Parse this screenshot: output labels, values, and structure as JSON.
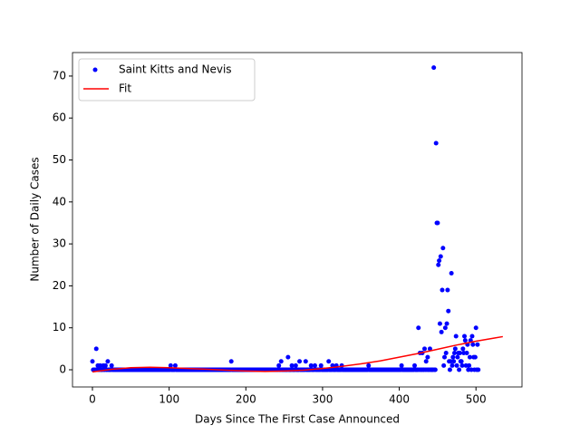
{
  "chart_data": {
    "type": "scatter",
    "xlabel": "Days Since The First Case Announced",
    "ylabel": "Number of Daily Cases",
    "xlim": [
      -26,
      560
    ],
    "ylim": [
      -4.1,
      75.6
    ],
    "xticks": [
      0,
      100,
      200,
      300,
      400,
      500
    ],
    "yticks": [
      0,
      10,
      20,
      30,
      40,
      50,
      60,
      70
    ],
    "legend": "upper left",
    "series": [
      {
        "name": "Saint Kitts and Nevis",
        "kind": "points",
        "color": "#0000ff",
        "x": [
          0,
          1,
          2,
          3,
          4,
          5,
          6,
          7,
          8,
          9,
          10,
          11,
          12,
          13,
          14,
          15,
          16,
          17,
          18,
          19,
          20,
          21,
          22,
          23,
          24,
          25,
          26,
          27,
          28,
          29,
          30,
          31,
          32,
          33,
          34,
          35,
          36,
          37,
          38,
          39,
          40,
          41,
          42,
          43,
          44,
          45,
          46,
          47,
          48,
          49,
          50,
          51,
          52,
          53,
          54,
          55,
          56,
          57,
          58,
          59,
          60,
          61,
          62,
          63,
          64,
          65,
          66,
          67,
          68,
          69,
          70,
          71,
          72,
          73,
          74,
          75,
          76,
          77,
          78,
          79,
          80,
          81,
          82,
          83,
          84,
          85,
          86,
          87,
          88,
          89,
          90,
          91,
          92,
          93,
          94,
          95,
          96,
          97,
          98,
          99,
          100,
          101,
          102,
          103,
          104,
          105,
          106,
          107,
          108,
          109,
          110,
          111,
          112,
          113,
          114,
          115,
          116,
          117,
          118,
          119,
          120,
          121,
          122,
          123,
          124,
          125,
          126,
          127,
          128,
          129,
          130,
          131,
          132,
          133,
          134,
          135,
          136,
          137,
          138,
          139,
          140,
          141,
          142,
          143,
          144,
          145,
          146,
          147,
          148,
          149,
          150,
          151,
          152,
          153,
          154,
          155,
          156,
          157,
          158,
          159,
          160,
          161,
          162,
          163,
          164,
          165,
          166,
          167,
          168,
          169,
          170,
          171,
          172,
          173,
          174,
          175,
          176,
          177,
          178,
          179,
          180,
          181,
          182,
          183,
          184,
          185,
          186,
          187,
          188,
          189,
          190,
          191,
          192,
          193,
          194,
          195,
          196,
          197,
          198,
          199,
          200,
          201,
          202,
          203,
          204,
          205,
          206,
          207,
          208,
          209,
          210,
          211,
          212,
          213,
          214,
          215,
          216,
          217,
          218,
          219,
          220,
          221,
          222,
          223,
          224,
          225,
          226,
          227,
          228,
          229,
          230,
          231,
          232,
          233,
          234,
          235,
          236,
          237,
          238,
          239,
          240,
          241,
          242,
          243,
          244,
          245,
          246,
          247,
          248,
          249,
          250,
          251,
          252,
          253,
          254,
          255,
          256,
          257,
          258,
          259,
          260,
          261,
          262,
          263,
          264,
          265,
          266,
          267,
          268,
          269,
          270,
          271,
          272,
          273,
          274,
          275,
          276,
          277,
          278,
          279,
          280,
          281,
          282,
          283,
          284,
          285,
          286,
          287,
          288,
          289,
          290,
          291,
          292,
          293,
          294,
          295,
          296,
          297,
          298,
          299,
          300,
          301,
          302,
          303,
          304,
          305,
          306,
          307,
          308,
          309,
          310,
          311,
          312,
          313,
          314,
          315,
          316,
          317,
          318,
          319,
          320,
          321,
          322,
          323,
          324,
          325,
          326,
          327,
          328,
          329,
          330,
          331,
          332,
          333,
          334,
          335,
          336,
          337,
          338,
          339,
          340,
          341,
          342,
          343,
          344,
          345,
          346,
          347,
          348,
          349,
          350,
          351,
          352,
          353,
          354,
          355,
          356,
          357,
          358,
          359,
          360,
          361,
          362,
          363,
          364,
          365,
          366,
          367,
          368,
          369,
          370,
          371,
          372,
          373,
          374,
          375,
          376,
          377,
          378,
          379,
          380,
          381,
          382,
          383,
          384,
          385,
          386,
          387,
          388,
          389,
          390,
          391,
          392,
          393,
          394,
          395,
          396,
          397,
          398,
          399,
          400,
          401,
          402,
          403,
          404,
          405,
          406,
          407,
          408,
          409,
          410,
          411,
          412,
          413,
          414,
          415,
          416,
          417,
          418,
          419,
          420,
          421,
          422,
          423,
          424,
          425,
          426,
          427,
          428,
          429,
          430,
          431,
          432,
          433,
          434,
          435,
          436,
          437,
          438,
          439,
          440,
          441,
          442,
          443,
          444,
          445,
          446,
          447,
          448,
          449,
          450,
          451,
          452,
          453,
          454,
          455,
          456,
          457,
          458,
          459,
          460,
          461,
          462,
          463,
          464,
          465,
          466,
          467,
          468,
          469,
          470,
          471,
          472,
          473,
          474,
          475,
          476,
          477,
          478,
          479,
          480,
          481,
          482,
          483,
          484,
          485,
          486,
          487,
          488,
          489,
          490,
          491,
          492,
          493,
          494,
          495,
          496,
          497,
          498,
          499,
          500,
          501,
          502,
          503
        ],
        "values": [
          2,
          0,
          0,
          0,
          0,
          5,
          0,
          1,
          0,
          0,
          1,
          0,
          0,
          0,
          1,
          0,
          0,
          1,
          0,
          0,
          2,
          0,
          0,
          0,
          0,
          1,
          0,
          0,
          0,
          0,
          0,
          0,
          0,
          0,
          0,
          0,
          0,
          0,
          0,
          0,
          0,
          0,
          0,
          0,
          0,
          0,
          0,
          0,
          0,
          0,
          0,
          0,
          0,
          0,
          0,
          0,
          0,
          0,
          0,
          0,
          0,
          0,
          0,
          0,
          0,
          0,
          0,
          0,
          0,
          0,
          0,
          0,
          0,
          0,
          0,
          0,
          0,
          0,
          0,
          0,
          0,
          0,
          0,
          0,
          0,
          0,
          0,
          0,
          0,
          0,
          0,
          0,
          0,
          0,
          0,
          0,
          0,
          0,
          0,
          0,
          0,
          0,
          1,
          0,
          0,
          0,
          0,
          0,
          1,
          0,
          0,
          0,
          0,
          0,
          0,
          0,
          0,
          0,
          0,
          0,
          0,
          0,
          0,
          0,
          0,
          0,
          0,
          0,
          0,
          0,
          0,
          0,
          0,
          0,
          0,
          0,
          0,
          0,
          0,
          0,
          0,
          0,
          0,
          0,
          0,
          0,
          0,
          0,
          0,
          0,
          0,
          0,
          0,
          0,
          0,
          0,
          0,
          0,
          0,
          0,
          0,
          0,
          0,
          0,
          0,
          0,
          0,
          0,
          0,
          0,
          0,
          0,
          0,
          0,
          0,
          0,
          0,
          0,
          0,
          0,
          0,
          2,
          0,
          0,
          0,
          0,
          0,
          0,
          0,
          0,
          0,
          0,
          0,
          0,
          0,
          0,
          0,
          0,
          0,
          0,
          0,
          0,
          0,
          0,
          0,
          0,
          0,
          0,
          0,
          0,
          0,
          0,
          0,
          0,
          0,
          0,
          0,
          0,
          0,
          0,
          0,
          0,
          0,
          0,
          0,
          0,
          0,
          0,
          0,
          0,
          0,
          0,
          0,
          0,
          0,
          0,
          0,
          0,
          0,
          0,
          0,
          0,
          0,
          1,
          0,
          0,
          2,
          0,
          0,
          0,
          0,
          0,
          0,
          0,
          0,
          3,
          0,
          0,
          0,
          0,
          1,
          0,
          0,
          0,
          0,
          1,
          0,
          0,
          0,
          0,
          2,
          0,
          0,
          0,
          0,
          0,
          0,
          0,
          2,
          0,
          0,
          0,
          0,
          0,
          0,
          1,
          0,
          0,
          0,
          0,
          1,
          0,
          0,
          0,
          0,
          0,
          0,
          0,
          1,
          0,
          0,
          0,
          0,
          0,
          0,
          0,
          0,
          0,
          2,
          0,
          0,
          0,
          0,
          1,
          0,
          0,
          0,
          0,
          1,
          0,
          0,
          0,
          0,
          0,
          0,
          1,
          0,
          0,
          0,
          0,
          0,
          0,
          0,
          0,
          0,
          0,
          0,
          0,
          0,
          0,
          0,
          0,
          0,
          0,
          0,
          0,
          0,
          0,
          0,
          0,
          0,
          0,
          0,
          0,
          0,
          0,
          0,
          0,
          0,
          0,
          1,
          0,
          0,
          0,
          0,
          0,
          0,
          0,
          0,
          0,
          0,
          0,
          0,
          0,
          0,
          0,
          0,
          0,
          0,
          0,
          0,
          0,
          0,
          0,
          0,
          0,
          0,
          0,
          0,
          0,
          0,
          0,
          0,
          0,
          0,
          0,
          0,
          0,
          0,
          0,
          0,
          0,
          0,
          1,
          0,
          0,
          0,
          0,
          0,
          0,
          0,
          0,
          0,
          0,
          0,
          0,
          0,
          0,
          0,
          0,
          1,
          0,
          0,
          0,
          0,
          10,
          0,
          4,
          0,
          0,
          4,
          0,
          0,
          5,
          0,
          2,
          0,
          3,
          0,
          0,
          5,
          0,
          0,
          0,
          0,
          72,
          0,
          0,
          54,
          35,
          35,
          25,
          26,
          11,
          27,
          9,
          19,
          29,
          1,
          3,
          10,
          4,
          11,
          19,
          14,
          2,
          0,
          2,
          23,
          1,
          3,
          2,
          4,
          5,
          8,
          1,
          3,
          4,
          0,
          4,
          2,
          2,
          1,
          5,
          4,
          8,
          7,
          1,
          4,
          6,
          0,
          1,
          3,
          7,
          0,
          8,
          6,
          3,
          0,
          3,
          10,
          0,
          6,
          0
        ]
      },
      {
        "name": "Fit",
        "kind": "line",
        "color": "#ff0000",
        "x": [
          0,
          25,
          50,
          75,
          100,
          125,
          150,
          175,
          200,
          225,
          250,
          275,
          300,
          325,
          350,
          375,
          400,
          425,
          450,
          475,
          500,
          525,
          535
        ],
        "values": [
          -0.5,
          0.1,
          0.5,
          0.6,
          0.5,
          0.3,
          0.1,
          -0.1,
          -0.3,
          -0.4,
          -0.3,
          -0.1,
          0.3,
          0.8,
          1.4,
          2.1,
          3.0,
          3.9,
          4.9,
          5.9,
          6.8,
          7.6,
          7.9
        ]
      }
    ]
  }
}
